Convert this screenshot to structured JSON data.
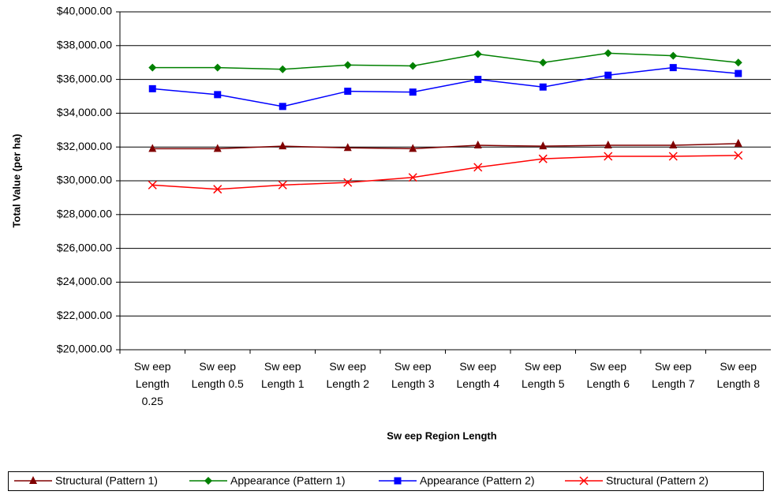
{
  "chart_data": {
    "type": "line",
    "x_label": "Sw eep Region Length",
    "y_label": "Total Value (per ha)",
    "categories": [
      "Sw eep Length 0.25",
      "Sw eep Length 0.5",
      "Sw eep Length 1",
      "Sw eep Length 2",
      "Sw eep Length 3",
      "Sw eep Length 4",
      "Sw eep Length 5",
      "Sw eep Length 6",
      "Sw eep Length 7",
      "Sw eep Length 8"
    ],
    "series": [
      {
        "name": "Structural (Pattern 1)",
        "color": "#800000",
        "marker": "triangle",
        "values": [
          31900,
          31900,
          32050,
          31950,
          31900,
          32100,
          32050,
          32100,
          32100,
          32200
        ]
      },
      {
        "name": "Appearance (Pattern 1)",
        "color": "#008000",
        "marker": "diamond",
        "values": [
          36700,
          36700,
          36600,
          36850,
          36800,
          37500,
          37000,
          37550,
          37400,
          37000
        ]
      },
      {
        "name": "Appearance (Pattern 2)",
        "color": "#0000ff",
        "marker": "square",
        "values": [
          35450,
          35100,
          34400,
          35300,
          35250,
          36000,
          35550,
          36250,
          36700,
          36350
        ]
      },
      {
        "name": "Structural (Pattern 2)",
        "color": "#ff0000",
        "marker": "x",
        "values": [
          29750,
          29500,
          29750,
          29900,
          30200,
          30800,
          31300,
          31450,
          31450,
          31500
        ]
      }
    ],
    "ylim": [
      20000,
      40000
    ],
    "yticks": [
      {
        "value": 20000,
        "label": "$20,000.00"
      },
      {
        "value": 22000,
        "label": "$22,000.00"
      },
      {
        "value": 24000,
        "label": "$24,000.00"
      },
      {
        "value": 26000,
        "label": "$26,000.00"
      },
      {
        "value": 28000,
        "label": "$28,000.00"
      },
      {
        "value": 30000,
        "label": "$30,000.00"
      },
      {
        "value": 32000,
        "label": "$32,000.00"
      },
      {
        "value": 34000,
        "label": "$34,000.00"
      },
      {
        "value": 36000,
        "label": "$36,000.00"
      },
      {
        "value": 38000,
        "label": "$38,000.00"
      },
      {
        "value": 40000,
        "label": "$40,000.00"
      }
    ],
    "grid": true,
    "legend": "bottom"
  }
}
